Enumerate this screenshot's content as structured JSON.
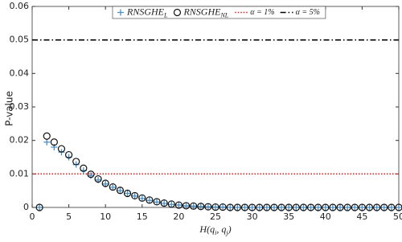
{
  "chart_data": {
    "type": "scatter",
    "xlabel": "H(q_i, q_j)",
    "ylabel": "P-value",
    "x": [
      1,
      2,
      3,
      4,
      5,
      6,
      7,
      8,
      9,
      10,
      11,
      12,
      13,
      14,
      15,
      16,
      17,
      18,
      19,
      20,
      21,
      22,
      23,
      24,
      25,
      26,
      27,
      28,
      29,
      30,
      31,
      32,
      33,
      34,
      35,
      36,
      37,
      38,
      39,
      40,
      41,
      42,
      43,
      44,
      45,
      46,
      47,
      48,
      49,
      50
    ],
    "series": [
      {
        "name": "RNSGHE_L",
        "color": "#4a90c8",
        "marker": "plus",
        "values": [
          0,
          0.0195,
          0.018,
          0.0165,
          0.015,
          0.0128,
          0.011,
          0.0095,
          0.0082,
          0.007,
          0.006,
          0.005,
          0.0042,
          0.0034,
          0.0027,
          0.0021,
          0.0016,
          0.0012,
          0.0009,
          0.0007,
          0.0005,
          0.0004,
          0.0003,
          0.0002,
          0.0001,
          0.0001,
          0,
          0,
          0,
          0,
          0,
          0,
          0,
          0,
          0,
          0,
          0,
          0,
          0,
          0,
          0,
          0,
          0,
          0,
          0,
          0,
          0,
          0,
          0,
          0
        ]
      },
      {
        "name": "RNSGHE_NL",
        "color": "#111111",
        "marker": "circle",
        "values": [
          0,
          0.0213,
          0.0195,
          0.0175,
          0.0157,
          0.0137,
          0.0117,
          0.0099,
          0.0085,
          0.0072,
          0.0061,
          0.0051,
          0.0042,
          0.0035,
          0.0028,
          0.0022,
          0.0017,
          0.0013,
          0.001,
          0.0007,
          0.0005,
          0.0004,
          0.0003,
          0.0002,
          0.0001,
          0.0001,
          0,
          0,
          0,
          0,
          0,
          0,
          0,
          0,
          0,
          0,
          0,
          0,
          0,
          0,
          0,
          0,
          0,
          0,
          0,
          0,
          0,
          0,
          0,
          0
        ]
      }
    ],
    "reference_lines": [
      {
        "name": "α = 1%",
        "color": "#d62020",
        "style": "dotted",
        "value": 0.01
      },
      {
        "name": "α = 5%",
        "color": "#000000",
        "style": "dashdot",
        "value": 0.05
      }
    ],
    "xlim": [
      0,
      50
    ],
    "xticks": [
      0,
      5,
      10,
      15,
      20,
      25,
      30,
      35,
      40,
      45,
      50
    ],
    "ylim": [
      0,
      0.06
    ],
    "yticks": [
      0,
      0.01,
      0.02,
      0.03,
      0.04,
      0.05,
      0.06
    ],
    "grid": false
  }
}
